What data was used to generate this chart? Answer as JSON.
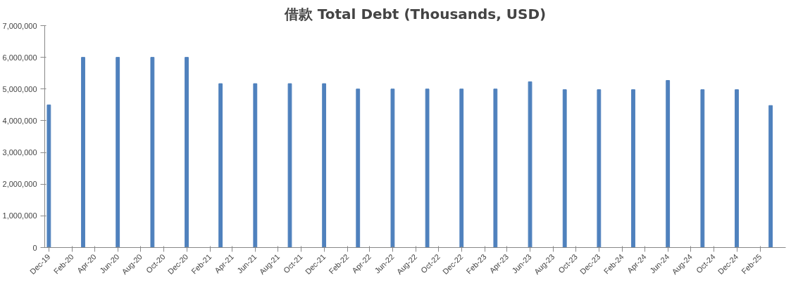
{
  "chart_data": {
    "type": "bar",
    "title": "借款 Total Debt (Thousands, USD)",
    "x": [
      "2019-12",
      "2020-03",
      "2020-06",
      "2020-09",
      "2020-12",
      "2021-03",
      "2021-06",
      "2021-09",
      "2021-12",
      "2022-03",
      "2022-06",
      "2022-09",
      "2022-12",
      "2023-03",
      "2023-06",
      "2023-09",
      "2023-12",
      "2024-03",
      "2024-06",
      "2024-09",
      "2024-12",
      "2025-03"
    ],
    "values": [
      4500000,
      6000000,
      6000000,
      6000000,
      6000000,
      5170000,
      5170000,
      5170000,
      5170000,
      5000000,
      5000000,
      5000000,
      5000000,
      5000000,
      5230000,
      4980000,
      4980000,
      4980000,
      5270000,
      4980000,
      4980000,
      4480000
    ],
    "color": "#4f81bd",
    "ylim": [
      0,
      7000000
    ],
    "yticks": [
      0,
      {
        "value": 1000000,
        "label": "1,000,000"
      },
      {
        "value": 2000000,
        "label": "2,000,000"
      },
      {
        "value": 3000000,
        "label": "3,000,000"
      },
      {
        "value": 4000000,
        "label": "4,000,000"
      },
      {
        "value": 5000000,
        "label": "5,000,000"
      },
      {
        "value": 6000000,
        "label": "6,000,000"
      },
      {
        "value": 7000000,
        "label": "7,000,000"
      }
    ],
    "xlim": [
      "2019-11-20",
      "2025-04-10"
    ],
    "xticks": [
      {
        "value": "2019-12",
        "label": "Dec-19"
      },
      {
        "value": "2020-02",
        "label": "Feb-20"
      },
      {
        "value": "2020-04",
        "label": "Apr-20"
      },
      {
        "value": "2020-06",
        "label": "Jun-20"
      },
      {
        "value": "2020-08",
        "label": "Aug-20"
      },
      {
        "value": "2020-10",
        "label": "Oct-20"
      },
      {
        "value": "2020-12",
        "label": "Dec-20"
      },
      {
        "value": "2021-02",
        "label": "Feb-21"
      },
      {
        "value": "2021-04",
        "label": "Apr-21"
      },
      {
        "value": "2021-06",
        "label": "Jun-21"
      },
      {
        "value": "2021-08",
        "label": "Aug-21"
      },
      {
        "value": "2021-10",
        "label": "Oct-21"
      },
      {
        "value": "2021-12",
        "label": "Dec-21"
      },
      {
        "value": "2022-02",
        "label": "Feb-22"
      },
      {
        "value": "2022-04",
        "label": "Apr-22"
      },
      {
        "value": "2022-06",
        "label": "Jun-22"
      },
      {
        "value": "2022-08",
        "label": "Aug-22"
      },
      {
        "value": "2022-10",
        "label": "Oct-22"
      },
      {
        "value": "2022-12",
        "label": "Dec-22"
      },
      {
        "value": "2023-02",
        "label": "Feb-23"
      },
      {
        "value": "2023-04",
        "label": "Apr-23"
      },
      {
        "value": "2023-06",
        "label": "Jun-23"
      },
      {
        "value": "2023-08",
        "label": "Aug-23"
      },
      {
        "value": "2023-10",
        "label": "Oct-23"
      },
      {
        "value": "2023-12",
        "label": "Dec-23"
      },
      {
        "value": "2024-02",
        "label": "Feb-24"
      },
      {
        "value": "2024-04",
        "label": "Apr-24"
      },
      {
        "value": "2024-06",
        "label": "Jun-24"
      },
      {
        "value": "2024-08",
        "label": "Aug-24"
      },
      {
        "value": "2024-10",
        "label": "Oct-24"
      },
      {
        "value": "2024-12",
        "label": "Dec-24"
      },
      {
        "value": "2025-02",
        "label": "Feb-25"
      }
    ],
    "grid": false
  }
}
